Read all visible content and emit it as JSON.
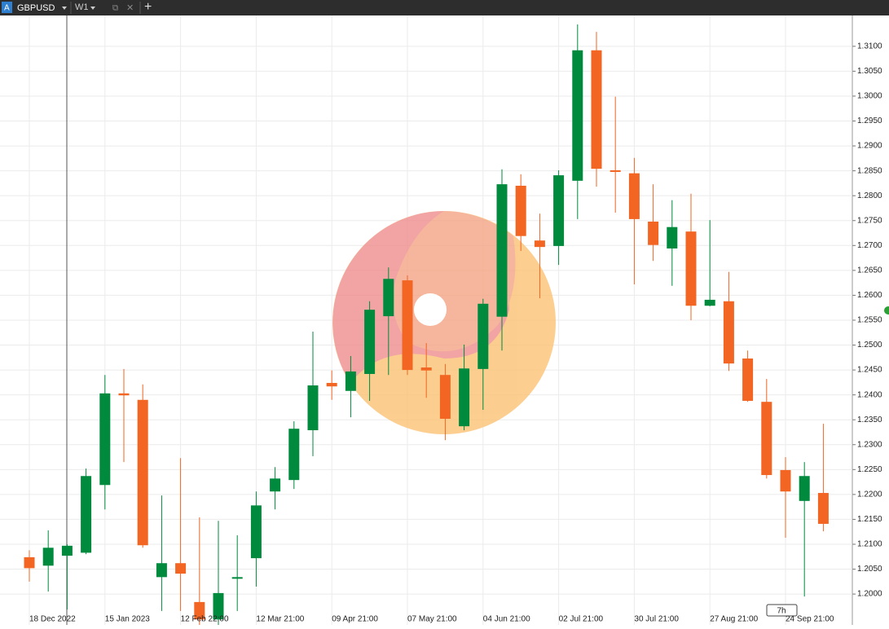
{
  "toolbar": {
    "symbol": "GBPUSD",
    "timeframe": "W1"
  },
  "chart_data": {
    "type": "candlestick",
    "symbol": "GBPUSD",
    "categories": [
      "18 Dec 2022",
      null,
      null,
      null,
      "15 Jan 2023",
      null,
      null,
      null,
      "12 Feb 22:00",
      null,
      null,
      null,
      "12 Mar 21:00",
      null,
      null,
      null,
      "09 Apr 21:00",
      null,
      null,
      null,
      "07 May 21:00",
      null,
      null,
      null,
      "04 Jun 21:00",
      null,
      null,
      null,
      "02 Jul 21:00",
      null,
      null,
      null,
      "30 Jul 21:00",
      null,
      null,
      null,
      "27 Aug 21:00",
      null,
      null,
      null,
      "24 Sep 21:00",
      null,
      null
    ],
    "open": [
      1.2074,
      1.2057,
      1.2077,
      1.2083,
      1.2219,
      1.2403,
      1.239,
      1.2034,
      1.2062,
      1.1984,
      1.1949,
      1.2031,
      1.2072,
      1.2206,
      1.2229,
      1.2329,
      1.2424,
      1.2408,
      1.2442,
      1.2558,
      1.263,
      1.2455,
      1.244,
      1.2337,
      1.2452,
      1.2557,
      1.282,
      1.271,
      1.2699,
      1.283,
      1.3092,
      1.2851,
      1.2845,
      1.2748,
      1.2694,
      1.2728,
      1.2579,
      1.2588,
      1.2473,
      1.2386,
      1.2249,
      1.2187,
      1.2203
    ],
    "high": [
      1.2088,
      1.2128,
      1.21,
      1.2252,
      1.244,
      1.2452,
      1.2421,
      1.2198,
      1.2273,
      1.2154,
      1.2147,
      1.2118,
      1.2206,
      1.2255,
      1.2347,
      1.2527,
      1.2449,
      1.2478,
      1.2588,
      1.2656,
      1.264,
      1.2504,
      1.2462,
      1.2501,
      1.2593,
      1.2853,
      1.2843,
      1.2764,
      1.2851,
      1.3144,
      1.3129,
      1.2999,
      1.2876,
      1.2823,
      1.2791,
      1.2804,
      1.2751,
      1.2647,
      1.2489,
      1.2432,
      1.2275,
      1.2265,
      1.2342
    ],
    "low": [
      1.2025,
      1.2005,
      1.1969,
      1.208,
      1.217,
      1.2265,
      1.2093,
      1.1966,
      1.1966,
      1.1938,
      1.1938,
      1.1966,
      1.2015,
      1.217,
      1.2211,
      1.2277,
      1.239,
      1.2355,
      1.2388,
      1.244,
      1.244,
      1.2394,
      1.2309,
      1.2329,
      1.237,
      1.2489,
      1.2689,
      1.2594,
      1.2661,
      1.2753,
      1.2818,
      1.2766,
      1.2622,
      1.2669,
      1.2619,
      1.255,
      1.2578,
      1.2448,
      1.2386,
      1.2232,
      1.2113,
      1.1995,
      1.2126
    ],
    "close": [
      1.2052,
      1.2093,
      1.2097,
      1.2237,
      1.2403,
      1.2399,
      1.2098,
      1.2062,
      1.2041,
      1.1949,
      1.2002,
      1.2034,
      1.2178,
      1.2232,
      1.2332,
      1.2419,
      1.2417,
      1.2447,
      1.2571,
      1.2633,
      1.245,
      1.2449,
      1.2352,
      1.2453,
      1.2583,
      1.2823,
      1.2719,
      1.2697,
      1.2841,
      1.3092,
      1.2854,
      1.2848,
      1.2753,
      1.2701,
      1.2737,
      1.2579,
      1.2591,
      1.2463,
      1.2388,
      1.2239,
      1.2206,
      1.2237,
      1.2141
    ],
    "up_color": "#008a3e",
    "down_color": "#f26522",
    "ylim": [
      1.1938,
      1.3157
    ],
    "yticks": [
      {
        "value": 1.2,
        "label": "1.2000"
      },
      {
        "value": 1.205,
        "label": "1.2050"
      },
      {
        "value": 1.21,
        "label": "1.2100"
      },
      {
        "value": 1.215,
        "label": "1.2150"
      },
      {
        "value": 1.22,
        "label": "1.2200"
      },
      {
        "value": 1.225,
        "label": "1.2250"
      },
      {
        "value": 1.23,
        "label": "1.2300"
      },
      {
        "value": 1.235,
        "label": "1.2350"
      },
      {
        "value": 1.24,
        "label": "1.2400"
      },
      {
        "value": 1.245,
        "label": "1.2450"
      },
      {
        "value": 1.25,
        "label": "1.2500"
      },
      {
        "value": 1.255,
        "label": "1.2550"
      },
      {
        "value": 1.26,
        "label": "1.2600"
      },
      {
        "value": 1.265,
        "label": "1.2650"
      },
      {
        "value": 1.27,
        "label": "1.2700"
      },
      {
        "value": 1.275,
        "label": "1.2750"
      },
      {
        "value": 1.28,
        "label": "1.2800"
      },
      {
        "value": 1.285,
        "label": "1.2850"
      },
      {
        "value": 1.29,
        "label": "1.2900"
      },
      {
        "value": 1.295,
        "label": "1.2950"
      },
      {
        "value": 1.3,
        "label": "1.3000"
      },
      {
        "value": 1.305,
        "label": "1.3050"
      },
      {
        "value": 1.31,
        "label": "1.3100"
      }
    ],
    "grid": true,
    "time_badge": "7h"
  }
}
